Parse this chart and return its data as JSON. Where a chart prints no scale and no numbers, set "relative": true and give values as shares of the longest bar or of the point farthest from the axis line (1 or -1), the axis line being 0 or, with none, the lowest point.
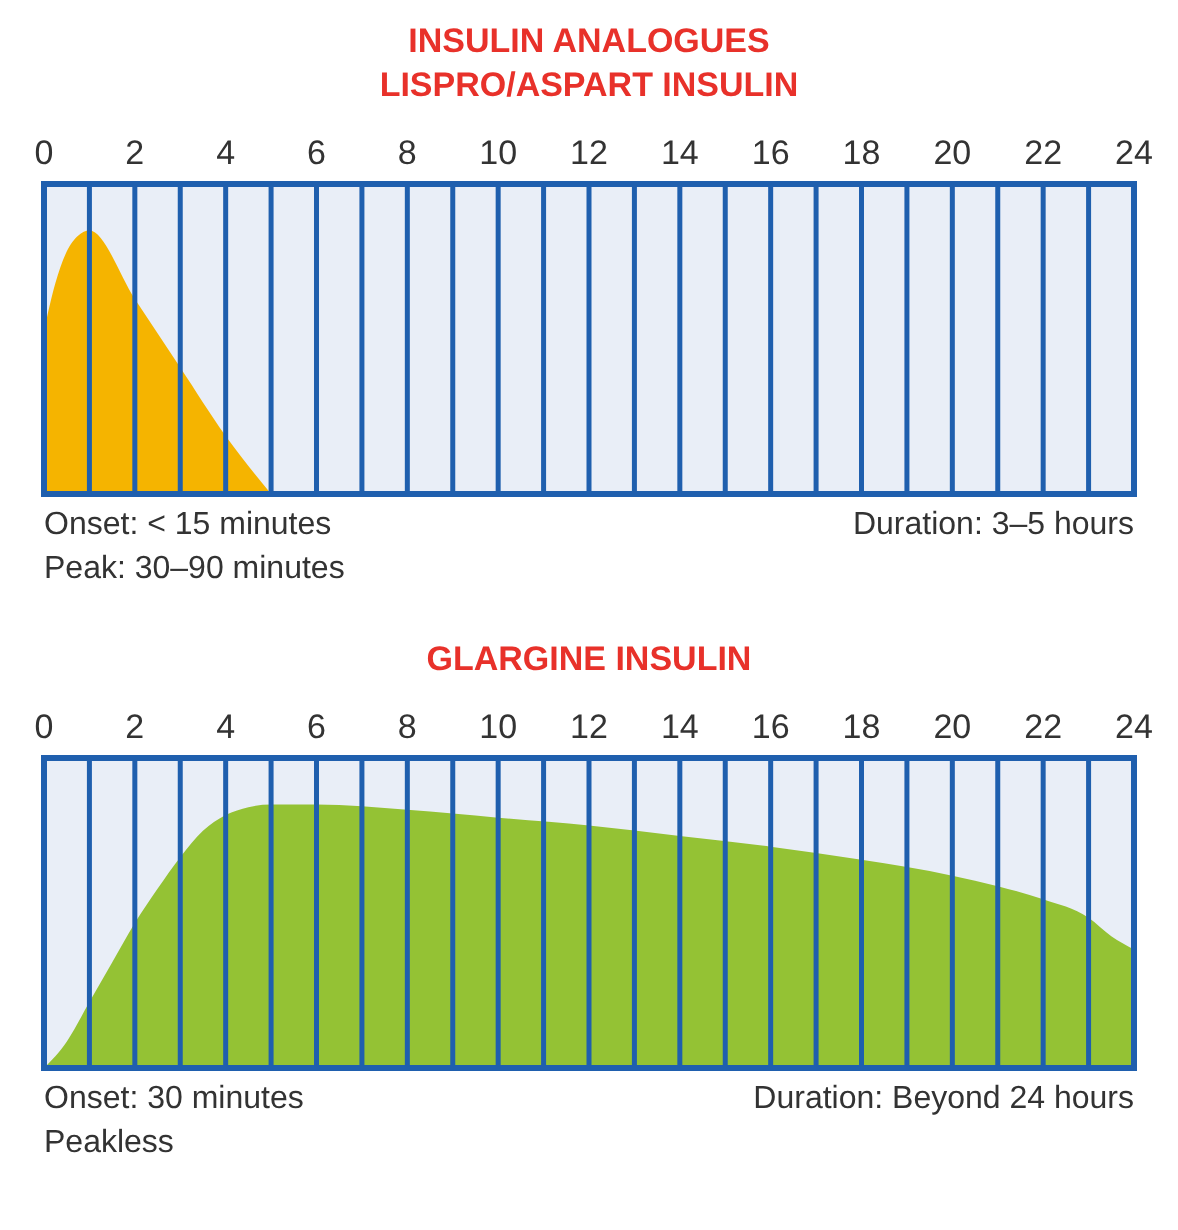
{
  "chart_data": [
    {
      "type": "area",
      "title": "INSULIN ANALOGUES",
      "subtitle": "LISPRO/ASPART INSULIN",
      "relative": true,
      "grid": "x",
      "xlim": [
        0,
        24
      ],
      "xticks": [
        0,
        {
          "value": 1,
          "label": null
        },
        2,
        {
          "value": 3,
          "label": null
        },
        4,
        {
          "value": 5,
          "label": null
        },
        6,
        {
          "value": 7,
          "label": null
        },
        8,
        {
          "value": 9,
          "label": null
        },
        10,
        {
          "value": 11,
          "label": null
        },
        12,
        {
          "value": 13,
          "label": null
        },
        14,
        {
          "value": 15,
          "label": null
        },
        16,
        {
          "value": 17,
          "label": null
        },
        18,
        {
          "value": 19,
          "label": null
        },
        20,
        {
          "value": 21,
          "label": null
        },
        22,
        {
          "value": 23,
          "label": null
        },
        24
      ],
      "series": [
        {
          "color": "#f5b400",
          "x": [
            0,
            0.25,
            0.5,
            0.75,
            1,
            2,
            3,
            4,
            5
          ],
          "values": [
            0.62,
            0.8,
            0.92,
            0.98,
            1,
            0.74,
            0.48,
            0.22,
            0
          ]
        }
      ],
      "annotations": [
        "Onset: < 15 minutes",
        "Peak: 30–90 minutes",
        "Duration: 3–5 hours"
      ]
    },
    {
      "type": "area",
      "title": "GLARGINE INSULIN",
      "relative": true,
      "grid": "x",
      "xlim": [
        0,
        24
      ],
      "xticks": [
        0,
        {
          "value": 1,
          "label": null
        },
        2,
        {
          "value": 3,
          "label": null
        },
        4,
        {
          "value": 5,
          "label": null
        },
        6,
        {
          "value": 7,
          "label": null
        },
        8,
        {
          "value": 9,
          "label": null
        },
        10,
        {
          "value": 11,
          "label": null
        },
        12,
        {
          "value": 13,
          "label": null
        },
        14,
        {
          "value": 15,
          "label": null
        },
        16,
        {
          "value": 17,
          "label": null
        },
        18,
        {
          "value": 19,
          "label": null
        },
        20,
        {
          "value": 21,
          "label": null
        },
        22,
        {
          "value": 23,
          "label": null
        },
        24
      ],
      "series": [
        {
          "color": "#94c234",
          "x": [
            0,
            0.5,
            1,
            1.5,
            2,
            2.5,
            3,
            3.5,
            4,
            4.5,
            5,
            6,
            8,
            10,
            12,
            14,
            16,
            18,
            20,
            21,
            22,
            23,
            23.5,
            24
          ],
          "values": [
            0,
            0.1,
            0.25,
            0.4,
            0.55,
            0.68,
            0.8,
            0.9,
            0.96,
            0.99,
            1,
            1,
            0.98,
            0.95,
            0.92,
            0.88,
            0.84,
            0.79,
            0.73,
            0.69,
            0.64,
            0.57,
            0.5,
            0.45
          ]
        }
      ],
      "annotations": [
        "Onset: 30 minutes",
        "Peakless",
        "Duration: Beyond 24 hours"
      ]
    }
  ]
}
